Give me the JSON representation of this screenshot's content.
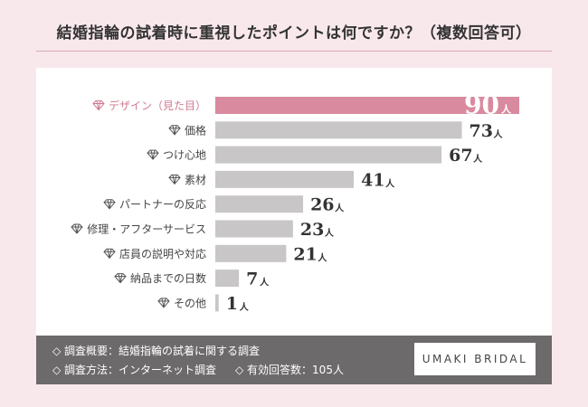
{
  "title": "結婚指輪の試着時に重視したポイントは何ですか？（複数回答可）",
  "chart_data": {
    "type": "bar",
    "orientation": "horizontal",
    "unit": "人",
    "categories": [
      "デザイン（見た目）",
      "価格",
      "つけ心地",
      "素材",
      "パートナーの反応",
      "修理・アフターサービス",
      "店員の説明や対応",
      "納品までの日数",
      "その他"
    ],
    "values": [
      90,
      73,
      67,
      41,
      26,
      23,
      21,
      7,
      1
    ],
    "highlight_index": 0,
    "colors": {
      "highlight_bar": "#d98a9f",
      "bar": "#c9c6c7",
      "highlight_label": "#d07a90",
      "label": "#444444",
      "value_on_bar": "#ffffff",
      "value": "#333333"
    },
    "icon": "diamond-icon"
  },
  "footer": {
    "overview": "◇ 調査概要：結婚指輪の試着に関する調査",
    "method": "◇ 調査方法：インターネット調査",
    "respondents": "◇ 有効回答数：105人",
    "brand": "UMAKI BRIDAL"
  }
}
